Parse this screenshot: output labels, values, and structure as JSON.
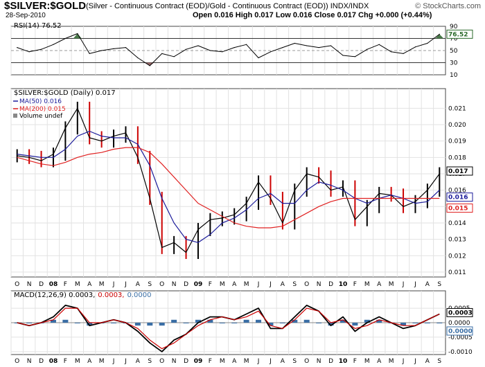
{
  "header": {
    "title": "$SILVER:$GOLD",
    "subtitle": "(Silver - Continuous Contract (EOD)/Gold - Continuous Contract (EOD))  INDX/INDX",
    "date": "28-Sep-2010",
    "ohlc": "Open 0.016  High 0.017  Low 0.016  Close 0.017  Chg +0.000 (+0.44%)",
    "credit": "© StockCharts.com"
  },
  "colors": {
    "price": "#000000",
    "down": "#cc0000",
    "ma50": "#1a1a9a",
    "ma200": "#e02020",
    "macd": "#000000",
    "signal": "#cc0000",
    "hist": "#3a6ea5",
    "rsi_over": "#4a7a4a",
    "rsi_under": "#9a6a6a"
  },
  "chart_data": [
    {
      "type": "line",
      "panel": "RSI",
      "title": "RSI(14) 76.52",
      "last_value_label": "76.52",
      "ylim": [
        10,
        90
      ],
      "yticks": [
        90,
        70,
        50,
        30,
        10
      ],
      "reference_lines": [
        70,
        50,
        30
      ],
      "x": [
        "Oct 2007",
        "Nov 2007",
        "Dec 2007",
        "Jan 2008",
        "Feb 2008",
        "Mar 2008",
        "Apr 2008",
        "May 2008",
        "Jun 2008",
        "Jul 2008",
        "Aug 2008",
        "Sep 2008",
        "Oct 2008",
        "Nov 2008",
        "Dec 2008",
        "Jan 2009",
        "Feb 2009",
        "Mar 2009",
        "Apr 2009",
        "May 2009",
        "Jun 2009",
        "Jul 2009",
        "Aug 2009",
        "Sep 2009",
        "Oct 2009",
        "Nov 2009",
        "Dec 2009",
        "Jan 2010",
        "Feb 2010",
        "Mar 2010",
        "Apr 2010",
        "May 2010",
        "Jun 2010",
        "Jul 2010",
        "Aug 2010",
        "Sep 2010"
      ],
      "values": [
        55,
        48,
        52,
        60,
        70,
        78,
        45,
        50,
        53,
        55,
        38,
        25,
        45,
        40,
        52,
        58,
        50,
        48,
        55,
        60,
        38,
        48,
        55,
        62,
        58,
        55,
        58,
        42,
        40,
        52,
        60,
        48,
        45,
        56,
        62,
        77
      ]
    },
    {
      "type": "line",
      "panel": "Price",
      "title": "$SILVER:$GOLD (Daily) 0.017",
      "legend": [
        "MA(50) 0.016",
        "MA(200) 0.015",
        "Volume undef"
      ],
      "last_value_labels": [
        "0.017",
        "0.016",
        "0.015"
      ],
      "ylim": [
        0.0107,
        0.0222
      ],
      "yticks": [
        0.021,
        0.02,
        0.019,
        0.018,
        0.017,
        0.016,
        0.015,
        0.014,
        0.013,
        0.012,
        0.011
      ],
      "x": [
        "Oct 2007",
        "Nov 2007",
        "Dec 2007",
        "Jan 2008",
        "Feb 2008",
        "Mar 2008",
        "Apr 2008",
        "May 2008",
        "Jun 2008",
        "Jul 2008",
        "Aug 2008",
        "Sep 2008",
        "Oct 2008",
        "Nov 2008",
        "Dec 2008",
        "Jan 2009",
        "Feb 2009",
        "Mar 2009",
        "Apr 2009",
        "May 2009",
        "Jun 2009",
        "Jul 2009",
        "Aug 2009",
        "Sep 2009",
        "Oct 2009",
        "Nov 2009",
        "Dec 2009",
        "Jan 2010",
        "Feb 2010",
        "Mar 2010",
        "Apr 2010",
        "May 2010",
        "Jun 2010",
        "Jul 2010",
        "Aug 2010",
        "Sep 2010"
      ],
      "series": [
        {
          "name": "$SILVER:$GOLD",
          "values": [
            0.0181,
            0.018,
            0.0178,
            0.0182,
            0.0198,
            0.021,
            0.0192,
            0.019,
            0.0193,
            0.0195,
            0.018,
            0.0155,
            0.0125,
            0.0128,
            0.0122,
            0.0136,
            0.0142,
            0.0143,
            0.0145,
            0.0152,
            0.0165,
            0.0155,
            0.014,
            0.016,
            0.017,
            0.0168,
            0.016,
            0.0162,
            0.0142,
            0.015,
            0.0158,
            0.0157,
            0.015,
            0.0153,
            0.016,
            0.017
          ]
        },
        {
          "name": "MA(50) 0.016",
          "values": [
            0.0182,
            0.0181,
            0.018,
            0.018,
            0.0185,
            0.0193,
            0.0196,
            0.0193,
            0.0192,
            0.0192,
            0.0188,
            0.0175,
            0.0155,
            0.014,
            0.013,
            0.0128,
            0.0133,
            0.014,
            0.0143,
            0.0148,
            0.0155,
            0.0158,
            0.0152,
            0.0152,
            0.016,
            0.0165,
            0.0163,
            0.016,
            0.0155,
            0.0152,
            0.0155,
            0.0157,
            0.0155,
            0.0152,
            0.0153,
            0.016
          ]
        },
        {
          "name": "MA(200) 0.015",
          "values": [
            0.018,
            0.0178,
            0.0176,
            0.0175,
            0.0177,
            0.018,
            0.0182,
            0.0183,
            0.0185,
            0.0186,
            0.0186,
            0.0183,
            0.0176,
            0.0168,
            0.016,
            0.0152,
            0.0148,
            0.0144,
            0.014,
            0.0138,
            0.0137,
            0.0137,
            0.0138,
            0.0142,
            0.0146,
            0.015,
            0.0153,
            0.0155,
            0.0155,
            0.0155,
            0.0155,
            0.0155,
            0.0155,
            0.0155,
            0.0155,
            0.0155
          ]
        }
      ]
    },
    {
      "type": "line",
      "panel": "MACD",
      "title": "MACD(12,26,9) 0.0003, 0.0003, 0.0000",
      "title_parts": [
        "MACD(12,26,9) 0.0003,",
        "0.0003,",
        "0.0000"
      ],
      "last_value_labels": [
        "0.0003",
        "0.0000"
      ],
      "ylim": [
        -0.0011,
        0.0011
      ],
      "yticks": [
        0.0005,
        0.0,
        -0.0005,
        -0.001
      ],
      "ytick_labels": [
        "0.0005",
        "0.0000",
        "-0.0005",
        "-0.0010"
      ],
      "x": [
        "Oct 2007",
        "Nov 2007",
        "Dec 2007",
        "Jan 2008",
        "Feb 2008",
        "Mar 2008",
        "Apr 2008",
        "May 2008",
        "Jun 2008",
        "Jul 2008",
        "Aug 2008",
        "Sep 2008",
        "Oct 2008",
        "Nov 2008",
        "Dec 2008",
        "Jan 2009",
        "Feb 2009",
        "Mar 2009",
        "Apr 2009",
        "May 2009",
        "Jun 2009",
        "Jul 2009",
        "Aug 2009",
        "Sep 2009",
        "Oct 2009",
        "Nov 2009",
        "Dec 2009",
        "Jan 2010",
        "Feb 2010",
        "Mar 2010",
        "Apr 2010",
        "May 2010",
        "Jun 2010",
        "Jul 2010",
        "Aug 2010",
        "Sep 2010"
      ],
      "series": [
        {
          "name": "MACD",
          "values": [
            0.0,
            -0.0001,
            0.0,
            0.0002,
            0.0006,
            0.0005,
            -0.0001,
            0.0,
            0.0001,
            0.0,
            -0.0003,
            -0.0007,
            -0.001,
            -0.0006,
            -0.0004,
            0.0,
            0.0002,
            0.0002,
            0.0001,
            0.0003,
            0.0005,
            -0.0002,
            -0.0002,
            0.0002,
            0.0006,
            0.0004,
            -0.0001,
            0.0002,
            -0.0003,
            0.0,
            0.0002,
            0.0,
            -0.0002,
            -0.0001,
            0.0001,
            0.0003
          ]
        },
        {
          "name": "Signal",
          "values": [
            0.0,
            -0.0001,
            0.0,
            0.0001,
            0.0005,
            0.0005,
            0.0,
            0.0,
            0.0001,
            0.0,
            -0.0002,
            -0.0006,
            -0.0009,
            -0.0007,
            -0.0004,
            -0.0001,
            0.0001,
            0.0002,
            0.0001,
            0.0002,
            0.0004,
            -0.0001,
            -0.0002,
            0.0001,
            0.0005,
            0.0004,
            0.0,
            0.0001,
            -0.0002,
            -0.0001,
            0.0001,
            0.0,
            -0.0001,
            -0.0001,
            0.0001,
            0.0003
          ]
        },
        {
          "name": "Histogram",
          "values": [
            0.0,
            0.0,
            0.0,
            0.0001,
            0.0001,
            0.0,
            -0.0001,
            0.0,
            0.0,
            0.0,
            -0.0001,
            -0.0001,
            -0.0001,
            0.0001,
            0.0,
            0.0001,
            0.0001,
            0.0,
            0.0,
            0.0001,
            0.0001,
            -0.0001,
            0.0,
            0.0001,
            0.0001,
            0.0,
            -0.0001,
            0.0001,
            -0.0001,
            0.0001,
            0.0001,
            0.0,
            -0.0001,
            0.0,
            0.0,
            0.0
          ]
        }
      ]
    }
  ],
  "x_axis": {
    "labels": [
      "O",
      "N",
      "D",
      "08",
      "F",
      "M",
      "A",
      "M",
      "J",
      "J",
      "A",
      "S",
      "O",
      "N",
      "D",
      "09",
      "F",
      "M",
      "A",
      "M",
      "J",
      "J",
      "A",
      "S",
      "O",
      "N",
      "D",
      "10",
      "F",
      "M",
      "A",
      "M",
      "J",
      "J",
      "A",
      "S"
    ],
    "bold_labels": [
      "08",
      "09",
      "10"
    ]
  }
}
